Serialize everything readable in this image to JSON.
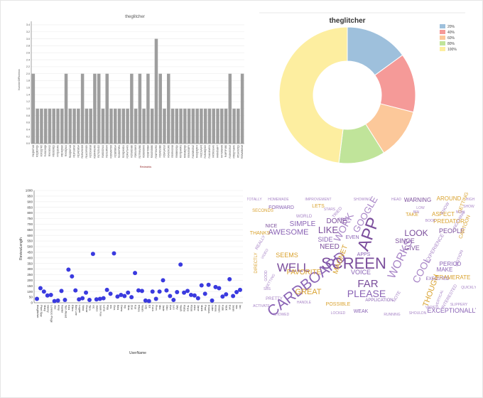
{
  "chart_data": [
    {
      "type": "bar",
      "title": "theglitcher",
      "xlabel": "ReviewIds",
      "ylabel": "NumberOfReviews",
      "ylim": [
        0,
        3.5
      ],
      "yticks": [
        "0.0",
        "0.2",
        "0.4",
        "0.6",
        "0.8",
        "1.0",
        "1.2",
        "1.4",
        "1.6",
        "1.8",
        "2.0",
        "2.2",
        "2.4",
        "2.6",
        "2.8",
        "3.0",
        "3.2",
        "3.4"
      ],
      "grid": true,
      "bar_color": "#9e9e9e",
      "categories": [
        "R1Q8G7A8",
        "R2Q8DFQ9",
        "R3X2Q7R5",
        "R4S1D0Q6",
        "R5K3G9S2",
        "R6D0D8Q1",
        "R7Q1D9R9",
        "R8D4Q6G0",
        "R9K8Q3A4",
        "R10Q8G7A8",
        "R11F1G6S0",
        "R12A6S8S4",
        "R13W3S9D8",
        "R14G9R3G9",
        "R15D9S6S8",
        "R16R4W9R0",
        "R17S2D4D2",
        "R18D0D9A4",
        "R19S1R0A4",
        "R20W8K5D6",
        "R21B5B8S4",
        "R22M9F8R4",
        "R23Q2K8D4",
        "R24W7S4K9",
        "R25S8D9B0",
        "R26S4S6K3",
        "R27R9W3B0",
        "R28D6D6K0",
        "R29B7D8B4",
        "R30G5G6B0",
        "R31F9W5R2",
        "R32A6S3B0",
        "R33A1A0S3",
        "R34S5K1R0",
        "R35R9S3S6",
        "R36B8S5Q4",
        "R37Q9A6R1",
        "R38S8Q5Q0",
        "R39M3S8F9",
        "R40S8K0W2",
        "R41Q3Q5F4",
        "R42D1A9F6",
        "R43M8Q5D5",
        "R44A1W6S1",
        "R45R9S9A9",
        "R46M5S6F7",
        "R47G5B4A6",
        "R48F3F4B0",
        "R49K6S5W3",
        "R50Q7S9M9",
        "R51A3S5Q1",
        "R52W0B0W8"
      ],
      "values": [
        2,
        1,
        1,
        1,
        1,
        1,
        1,
        1,
        2,
        1,
        1,
        1,
        2,
        1,
        1,
        2,
        2,
        1,
        2,
        1,
        1,
        1,
        1,
        1,
        2,
        1,
        2,
        1,
        2,
        1,
        3,
        2,
        1,
        2,
        1,
        1,
        1,
        1,
        1,
        1,
        1,
        1,
        1,
        1,
        1,
        1,
        1,
        1,
        2,
        1,
        1,
        2
      ]
    },
    {
      "type": "pie",
      "title": "theglitcher",
      "legend_position": "top-right",
      "categories": [
        "20%",
        "40%",
        "60%",
        "80%",
        "100%"
      ],
      "values": [
        15,
        14,
        12,
        11,
        48
      ],
      "colors": [
        "#9ec0dc",
        "#f59a98",
        "#fcc89a",
        "#c0e49a",
        "#fdeea0"
      ]
    },
    {
      "type": "scatter",
      "xlabel": "UserName",
      "ylabel": "ReviewLength",
      "ylim": [
        0,
        1000
      ],
      "yticks": [
        "0",
        "50",
        "100",
        "150",
        "200",
        "250",
        "300",
        "350",
        "400",
        "450",
        "500",
        "550",
        "600",
        "650",
        "700",
        "750",
        "800",
        "850",
        "900",
        "950",
        "1000"
      ],
      "grid": true,
      "point_color": "#3a3adf",
      "categories": [
        "theglitcher",
        "Pixel Spy",
        "Mary",
        "Henry",
        "Lorenzo Page",
        "Joe",
        "Amy",
        "Xavier",
        "Tom Reed",
        "Kira",
        "Ellen",
        "Ben Lee",
        "Logan",
        "Nina",
        "Oscar",
        "Tara",
        "Vic",
        "Jules",
        "Sam Fox",
        "Lena",
        "Ray",
        "Iris",
        "Gus",
        "Bea",
        "Drew",
        "Ivy",
        "Max",
        "Zoe",
        "Kai",
        "Rhea",
        "Noah",
        "Lily",
        "Eli",
        "Cora",
        "Finn",
        "Mia",
        "Jade",
        "Otto",
        "Ava",
        "Leo",
        "Sky",
        "Nash",
        "Ruby",
        "Theo",
        "Rose",
        "Alex",
        "Jane",
        "Mark",
        "Paul",
        "Emma",
        "Luke",
        "Anna",
        "Owen",
        "Kate",
        "Nick",
        "Eve",
        "Sean",
        "Ida",
        "Ian",
        "Ada",
        "Gabe",
        "Lucy",
        "Seth",
        "Dora",
        "Carl",
        "Tess",
        "Dan",
        "Una",
        "Earl",
        "Fay",
        "Jim",
        "Gail"
      ],
      "values": [
        35,
        130,
        100,
        65,
        70,
        15,
        20,
        105,
        25,
        295,
        235,
        110,
        30,
        40,
        90,
        25,
        435,
        30,
        35,
        40,
        115,
        80,
        440,
        55,
        70,
        60,
        90,
        50,
        265,
        110,
        105,
        20,
        15,
        100,
        35,
        100,
        200,
        110,
        60,
        25,
        95,
        340,
        90,
        105,
        70,
        65,
        40,
        155,
        80,
        160,
        20,
        140,
        130,
        55,
        75,
        210,
        60,
        95,
        115
      ],
      "x_index": [
        0,
        1,
        2,
        3,
        4,
        5,
        6,
        7,
        8,
        9,
        10,
        11,
        12,
        13,
        14,
        15,
        16,
        17,
        18,
        19,
        20,
        21,
        22,
        23,
        24,
        25,
        26,
        27,
        28,
        29,
        30,
        31,
        32,
        33,
        34,
        35,
        36,
        37,
        38,
        39,
        40,
        41,
        42,
        43,
        44,
        45,
        46,
        47,
        48,
        49,
        50,
        51,
        52,
        53,
        54,
        55,
        56,
        57,
        58
      ]
    }
  ],
  "wordcloud": {
    "words": [
      {
        "text": "SCREEN",
        "color": "#7b4e9c"
      },
      {
        "text": "CARDBOARD",
        "color": "#8a63b5"
      },
      {
        "text": "APP",
        "color": "#7b4e9c"
      },
      {
        "text": "WELL",
        "color": "#7b4e9c"
      },
      {
        "text": "WORK",
        "color": "#a885c7"
      },
      {
        "text": "GOOGLE",
        "color": "#a885c7"
      },
      {
        "text": "PLEASE",
        "color": "#8a63b5"
      },
      {
        "text": "GREAT",
        "color": "#d9a22e"
      },
      {
        "text": "FAVORITE",
        "color": "#d9a22e"
      },
      {
        "text": "LOOK",
        "color": "#7b4e9c"
      },
      {
        "text": "LIKE",
        "color": "#7b4e9c"
      },
      {
        "text": "AWESOME",
        "color": "#8a63b5"
      },
      {
        "text": "SIMPLE",
        "color": "#8a63b5"
      },
      {
        "text": "FAR",
        "color": "#7b4e9c"
      },
      {
        "text": "COOL",
        "color": "#a885c7"
      },
      {
        "text": "WORKS",
        "color": "#a885c7"
      },
      {
        "text": "NEED",
        "color": "#7b4e9c"
      },
      {
        "text": "DONE",
        "color": "#7b4e9c"
      },
      {
        "text": "SIDE",
        "color": "#8a63b5"
      },
      {
        "text": "SEEMS",
        "color": "#d9a22e"
      },
      {
        "text": "THANKS",
        "color": "#d9a22e"
      },
      {
        "text": "VOICE",
        "color": "#8a63b5"
      },
      {
        "text": "GIVE",
        "color": "#7b4e9c"
      },
      {
        "text": "SINCE",
        "color": "#7b4e9c"
      },
      {
        "text": "PEOPLE",
        "color": "#7b4e9c"
      },
      {
        "text": "MAKE",
        "color": "#8a63b5"
      },
      {
        "text": "FRAMERATE",
        "color": "#d9a22e"
      },
      {
        "text": "EXCEPTIONALLY",
        "color": "#8a63b5"
      },
      {
        "text": "THOUGH",
        "color": "#d9a22e"
      },
      {
        "text": "WARNING",
        "color": "#7b4e9c"
      },
      {
        "text": "AROUND",
        "color": "#d9a22e"
      },
      {
        "text": "ASPECT",
        "color": "#d9a22e"
      },
      {
        "text": "PREDATOR",
        "color": "#d9a22e"
      },
      {
        "text": "PERIOD",
        "color": "#8a63b5"
      },
      {
        "text": "FORWARD",
        "color": "#8a63b5"
      },
      {
        "text": "LETS",
        "color": "#d9a22e"
      },
      {
        "text": "TAKE",
        "color": "#d9a22e"
      },
      {
        "text": "NICE",
        "color": "#7b4e9c"
      },
      {
        "text": "EVEN",
        "color": "#8a63b5"
      },
      {
        "text": "APPS",
        "color": "#8a63b5"
      },
      {
        "text": "POSSIBLE",
        "color": "#d9a22e"
      },
      {
        "text": "APPLICATION",
        "color": "#8a63b5"
      },
      {
        "text": "EXECUTED",
        "color": "#8a63b5"
      },
      {
        "text": "WEAK",
        "color": "#8a63b5"
      },
      {
        "text": "SHOWED",
        "color": "#a885c7"
      },
      {
        "text": "RUNNING",
        "color": "#a885c7"
      },
      {
        "text": "SHOULDN",
        "color": "#a885c7"
      },
      {
        "text": "VARIED",
        "color": "#a885c7"
      },
      {
        "text": "SLIPPERY",
        "color": "#a885c7"
      },
      {
        "text": "TOTALLY",
        "color": "#a885c7"
      },
      {
        "text": "HOMEMADE",
        "color": "#a885c7"
      },
      {
        "text": "IMPROVEMENT",
        "color": "#a885c7"
      },
      {
        "text": "SHOWING",
        "color": "#a885c7"
      },
      {
        "text": "HEAD",
        "color": "#a885c7"
      },
      {
        "text": "SECONDS",
        "color": "#d9a22e"
      },
      {
        "text": "WORLD",
        "color": "#a885c7"
      },
      {
        "text": "DIRECTLY",
        "color": "#d9a22e"
      },
      {
        "text": "HANDLE",
        "color": "#a885c7"
      },
      {
        "text": "SBS",
        "color": "#a885c7"
      },
      {
        "text": "PRETTY",
        "color": "#a885c7"
      },
      {
        "text": "ACTIVATE",
        "color": "#a885c7"
      },
      {
        "text": "QUICKLY",
        "color": "#a885c7"
      },
      {
        "text": "GETTING",
        "color": "#d9a22e"
      },
      {
        "text": "HIGH",
        "color": "#a885c7"
      },
      {
        "text": "CARTOON",
        "color": "#d9a22e"
      },
      {
        "text": "SHOW",
        "color": "#a885c7"
      },
      {
        "text": "KNOW",
        "color": "#a885c7"
      },
      {
        "text": "NOTHING",
        "color": "#a885c7"
      },
      {
        "text": "LOW",
        "color": "#a885c7"
      },
      {
        "text": "BIN",
        "color": "#a885c7"
      },
      {
        "text": "EXPERIENCE",
        "color": "#a885c7"
      },
      {
        "text": "INTERESTED",
        "color": "#a885c7"
      },
      {
        "text": "VERTICAL",
        "color": "#a885c7"
      },
      {
        "text": "TRIED",
        "color": "#a885c7"
      },
      {
        "text": "MEAN",
        "color": "#a885c7"
      },
      {
        "text": "STARS",
        "color": "#a885c7"
      },
      {
        "text": "BOOK",
        "color": "#a885c7"
      },
      {
        "text": "NOTE",
        "color": "#a885c7"
      },
      {
        "text": "LOCKED",
        "color": "#a885c7"
      },
      {
        "text": "REALLY",
        "color": "#a885c7"
      },
      {
        "text": "MAGNET",
        "color": "#d9a22e"
      },
      {
        "text": "SETTING",
        "color": "#a885c7"
      },
      {
        "text": "VIDEO",
        "color": "#a885c7"
      },
      {
        "text": "MOTION",
        "color": "#a885c7"
      },
      {
        "text": "NOW",
        "color": "#a885c7"
      },
      {
        "text": "GOOD",
        "color": "#a885c7"
      }
    ]
  }
}
